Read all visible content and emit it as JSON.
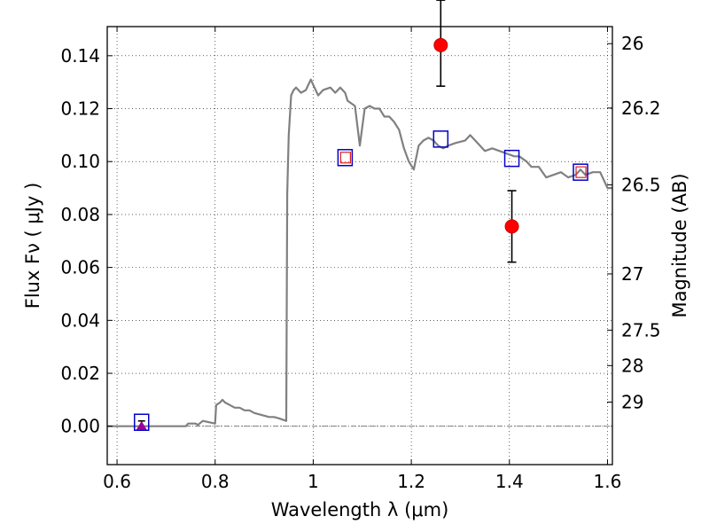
{
  "chart_data": {
    "type": "scatter",
    "xlabel": "Wavelength  λ (μm)",
    "ylabel": "Flux  Fν  ( μJy )",
    "y2label": "Magnitude (AB)",
    "xlim": [
      0.58,
      1.61
    ],
    "ylim": [
      -0.0145,
      0.151
    ],
    "grid": true,
    "x_ticks": [
      {
        "v": 0.6,
        "label": "0.6"
      },
      {
        "v": 0.8,
        "label": "0.8"
      },
      {
        "v": 1.0,
        "label": "1"
      },
      {
        "v": 1.2,
        "label": "1.2"
      },
      {
        "v": 1.4,
        "label": "1.4"
      },
      {
        "v": 1.6,
        "label": "1.6"
      }
    ],
    "y_ticks": [
      {
        "v": 0.0,
        "label": "0.00"
      },
      {
        "v": 0.02,
        "label": "0.02"
      },
      {
        "v": 0.04,
        "label": "0.04"
      },
      {
        "v": 0.06,
        "label": "0.06"
      },
      {
        "v": 0.08,
        "label": "0.08"
      },
      {
        "v": 0.1,
        "label": "0.10"
      },
      {
        "v": 0.12,
        "label": "0.12"
      },
      {
        "v": 0.14,
        "label": "0.14"
      }
    ],
    "y2_ticks": [
      {
        "mag": 26,
        "label": "26"
      },
      {
        "mag": 26.2,
        "label": "26.2"
      },
      {
        "mag": 26.5,
        "label": "26.5"
      },
      {
        "mag": 27,
        "label": "27"
      },
      {
        "mag": 27.5,
        "label": "27.5"
      },
      {
        "mag": 28,
        "label": "28"
      },
      {
        "mag": 29,
        "label": "29"
      }
    ],
    "series": [
      {
        "kind": "line",
        "color": "#808080",
        "x": [
          0.58,
          0.74,
          0.745,
          0.76,
          0.765,
          0.775,
          0.8,
          0.802,
          0.81,
          0.815,
          0.82,
          0.83,
          0.84,
          0.85,
          0.86,
          0.87,
          0.88,
          0.89,
          0.9,
          0.91,
          0.92,
          0.93,
          0.945,
          0.947,
          0.95,
          0.955,
          0.96,
          0.965,
          0.975,
          0.985,
          0.995,
          1.0,
          1.01,
          1.02,
          1.035,
          1.045,
          1.055,
          1.065,
          1.07,
          1.085,
          1.095,
          1.105,
          1.115,
          1.125,
          1.135,
          1.145,
          1.155,
          1.165,
          1.175,
          1.185,
          1.195,
          1.205,
          1.215,
          1.225,
          1.235,
          1.245,
          1.255,
          1.265,
          1.275,
          1.29,
          1.31,
          1.32,
          1.335,
          1.35,
          1.365,
          1.38,
          1.395,
          1.41,
          1.42,
          1.435,
          1.445,
          1.46,
          1.475,
          1.49,
          1.505,
          1.52,
          1.535,
          1.545,
          1.555,
          1.57,
          1.585,
          1.6,
          1.61
        ],
        "y": [
          0.0,
          0.0,
          0.001,
          0.001,
          0.0005,
          0.002,
          0.001,
          0.008,
          0.009,
          0.01,
          0.009,
          0.008,
          0.007,
          0.007,
          0.006,
          0.006,
          0.005,
          0.0045,
          0.004,
          0.0035,
          0.0035,
          0.003,
          0.002,
          0.088,
          0.11,
          0.125,
          0.127,
          0.128,
          0.126,
          0.127,
          0.131,
          0.129,
          0.125,
          0.127,
          0.128,
          0.126,
          0.128,
          0.126,
          0.123,
          0.121,
          0.106,
          0.12,
          0.121,
          0.12,
          0.12,
          0.117,
          0.117,
          0.115,
          0.112,
          0.105,
          0.1,
          0.097,
          0.106,
          0.108,
          0.109,
          0.108,
          0.106,
          0.105,
          0.106,
          0.107,
          0.108,
          0.11,
          0.107,
          0.104,
          0.105,
          0.104,
          0.103,
          0.102,
          0.102,
          0.1,
          0.098,
          0.098,
          0.094,
          0.095,
          0.096,
          0.094,
          0.095,
          0.097,
          0.095,
          0.096,
          0.096,
          0.09,
          0.09
        ]
      },
      {
        "kind": "open-squares",
        "color": "#0000cc",
        "x": [
          0.65,
          1.065,
          1.26,
          1.405,
          1.545
        ],
        "y": [
          0.0015,
          0.1015,
          0.1085,
          0.1012,
          0.096
        ]
      },
      {
        "kind": "open-squares-small",
        "color": "#e02020",
        "x": [
          1.065,
          1.545
        ],
        "y": [
          0.1015,
          0.096
        ]
      },
      {
        "kind": "points-with-errors",
        "color": "#ff0000",
        "points": [
          {
            "x": 1.26,
            "y": 0.144,
            "err_low": 0.0155,
            "err_high": 0.017
          },
          {
            "x": 1.405,
            "y": 0.0755,
            "err_low": 0.0135,
            "err_high": 0.0135
          }
        ]
      },
      {
        "kind": "upper-limit",
        "color": "#990099",
        "x": [
          0.65
        ],
        "y": [
          0.0
        ],
        "err_high": 0.002
      }
    ]
  }
}
